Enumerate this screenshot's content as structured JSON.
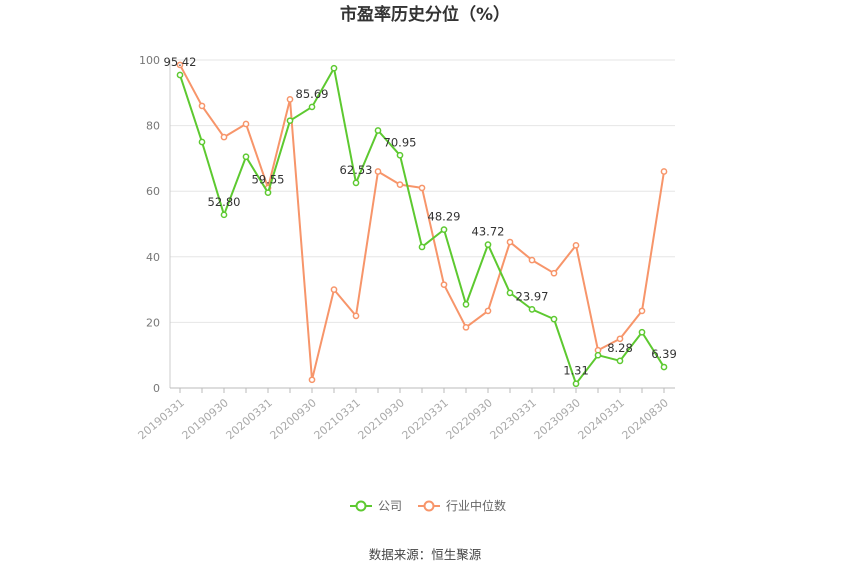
{
  "chart_data": {
    "type": "line",
    "title": "市盈率历史分位（%）",
    "categories": [
      "20190331",
      "20190630",
      "20190930",
      "20191231",
      "20200331",
      "20200630",
      "20200930",
      "20201231",
      "20210331",
      "20210630",
      "20210930",
      "20211231",
      "20220331",
      "20220630",
      "20220930",
      "20221231",
      "20230331",
      "20230630",
      "20230930",
      "20231231",
      "20240331",
      "20240630",
      "20240830"
    ],
    "x_tick_labels": [
      "20190331",
      "20190930",
      "20200331",
      "20200930",
      "20210331",
      "20210930",
      "20220331",
      "20220930",
      "20230331",
      "20230930",
      "20240331",
      "20240830"
    ],
    "series": [
      {
        "name": "公司",
        "color": "#5dc930",
        "values": [
          95.42,
          75,
          52.8,
          70.5,
          59.55,
          81.5,
          85.69,
          97.5,
          62.53,
          78.5,
          70.95,
          43,
          48.29,
          25.5,
          43.72,
          29,
          23.97,
          21,
          1.31,
          10,
          8.28,
          17,
          6.39
        ],
        "labels": {
          "0": "95.42",
          "2": "52.80",
          "4": "59.55",
          "6": "85.69",
          "8": "62.53",
          "10": "70.95",
          "12": "48.29",
          "14": "43.72",
          "16": "23.97",
          "18": "1.31",
          "20": "8.28",
          "22": "6.39"
        }
      },
      {
        "name": "行业中位数",
        "color": "#f7956a",
        "values": [
          98.5,
          86,
          76.5,
          80.5,
          61,
          88,
          2.5,
          30,
          22,
          66,
          62,
          61,
          31.5,
          18.5,
          23.5,
          44.5,
          39,
          35,
          43.5,
          11.5,
          15,
          23.5,
          66
        ]
      }
    ],
    "y_ticks": [
      "0",
      "20",
      "40",
      "60",
      "80",
      "100"
    ],
    "ylim": [
      0,
      100
    ],
    "grid": true,
    "legend_position": "bottom-center"
  },
  "footer": {
    "source": "数据来源：恒生聚源"
  }
}
